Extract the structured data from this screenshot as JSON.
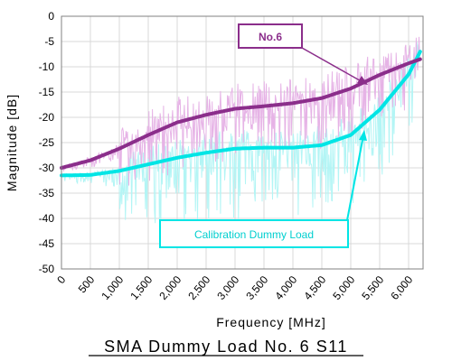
{
  "chart_data": {
    "type": "line",
    "title": "SMA Dummy Load No. 6 S11",
    "xlabel": "Frequency [MHz]",
    "ylabel": "Magnitude [dB]",
    "xlim": [
      0,
      6250
    ],
    "ylim": [
      -50,
      0
    ],
    "x_ticks": [
      0,
      500,
      1000,
      1500,
      2000,
      2500,
      3000,
      3500,
      4000,
      4500,
      5000,
      5500,
      6000
    ],
    "x_tick_labels": [
      "0",
      "500",
      "1,000",
      "1,500",
      "2,000",
      "2,500",
      "3,000",
      "3,500",
      "4,000",
      "4,500",
      "5,000",
      "5,500",
      "6,000"
    ],
    "y_ticks": [
      0,
      -5,
      -10,
      -15,
      -20,
      -25,
      -30,
      -35,
      -40,
      -45,
      -50
    ],
    "grid": true,
    "series": [
      {
        "name": "No.6",
        "color": "#8B2E8B",
        "raw_color": "#E6B3E6",
        "x": [
          0,
          500,
          1000,
          1500,
          2000,
          2500,
          3000,
          3500,
          4000,
          4500,
          5000,
          5500,
          6000,
          6200
        ],
        "values": [
          -30,
          -28.5,
          -26.2,
          -23.5,
          -21,
          -19.5,
          -18.3,
          -17.8,
          -17.2,
          -16.2,
          -14.3,
          -11.6,
          -9.3,
          -8.5
        ]
      },
      {
        "name": "Calibration Dummy Load",
        "color": "#00E5E5",
        "raw_color": "#B3F5F5",
        "x": [
          0,
          500,
          1000,
          1500,
          2000,
          2500,
          3000,
          3500,
          4000,
          4500,
          5000,
          5500,
          6000,
          6200
        ],
        "values": [
          -31.5,
          -31.4,
          -30.6,
          -29.3,
          -28,
          -27,
          -26.2,
          -26,
          -26,
          -25.5,
          -23.5,
          -18.5,
          -11.5,
          -7
        ]
      }
    ],
    "annotations": [
      {
        "text": "No.6",
        "series": 0,
        "color": "#8B2E8B"
      },
      {
        "text": "Calibration Dummy Load",
        "series": 1,
        "color": "#00CFCF"
      }
    ]
  }
}
